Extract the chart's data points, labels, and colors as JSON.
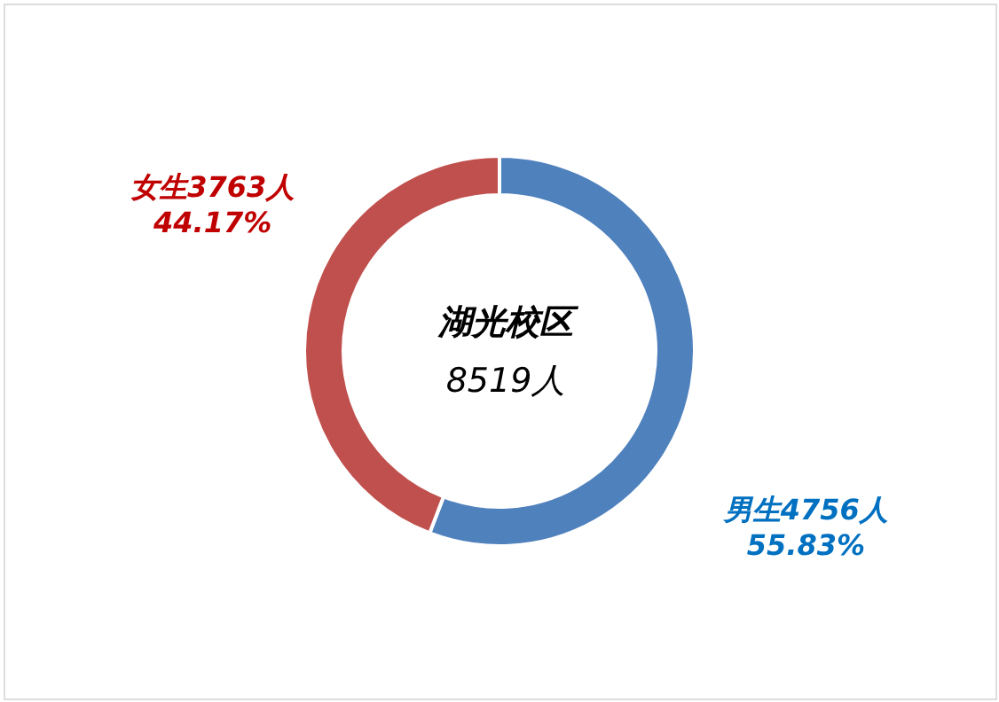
{
  "chart_data": {
    "type": "donut",
    "title": "湖光校区",
    "subtitle": "8519人",
    "categories": [
      "男生",
      "女生"
    ],
    "values": [
      4756,
      3763
    ],
    "colors": [
      "#4f81bd",
      "#c0504d"
    ],
    "value_labels": [
      "4756人\n55.83%",
      "3763人\n44.17%"
    ]
  }
}
